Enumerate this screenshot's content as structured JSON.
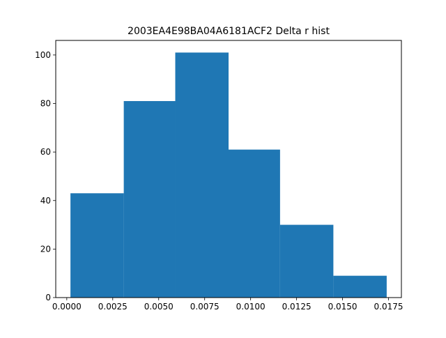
{
  "chart_data": {
    "type": "bar",
    "title": "2003EA4E98BA04A6181ACF2 Delta r hist",
    "xlabel": "",
    "ylabel": "",
    "bin_edges": [
      0.0002,
      0.0031,
      0.0059,
      0.0088,
      0.0116,
      0.0145,
      0.0174
    ],
    "values": [
      43,
      81,
      101,
      61,
      30,
      9
    ],
    "xlim": [
      -0.0006,
      0.0182
    ],
    "ylim": [
      0,
      106
    ],
    "xticks": [
      0.0,
      0.0025,
      0.005,
      0.0075,
      0.01,
      0.0125,
      0.015,
      0.0175
    ],
    "xtick_labels": [
      "0.0000",
      "0.0025",
      "0.0050",
      "0.0075",
      "0.0100",
      "0.0125",
      "0.0150",
      "0.0175"
    ],
    "yticks": [
      0,
      20,
      40,
      60,
      80,
      100
    ],
    "ytick_labels": [
      "0",
      "20",
      "40",
      "60",
      "80",
      "100"
    ],
    "bar_color": "#1f77b4",
    "grid": false,
    "legend": "none"
  }
}
